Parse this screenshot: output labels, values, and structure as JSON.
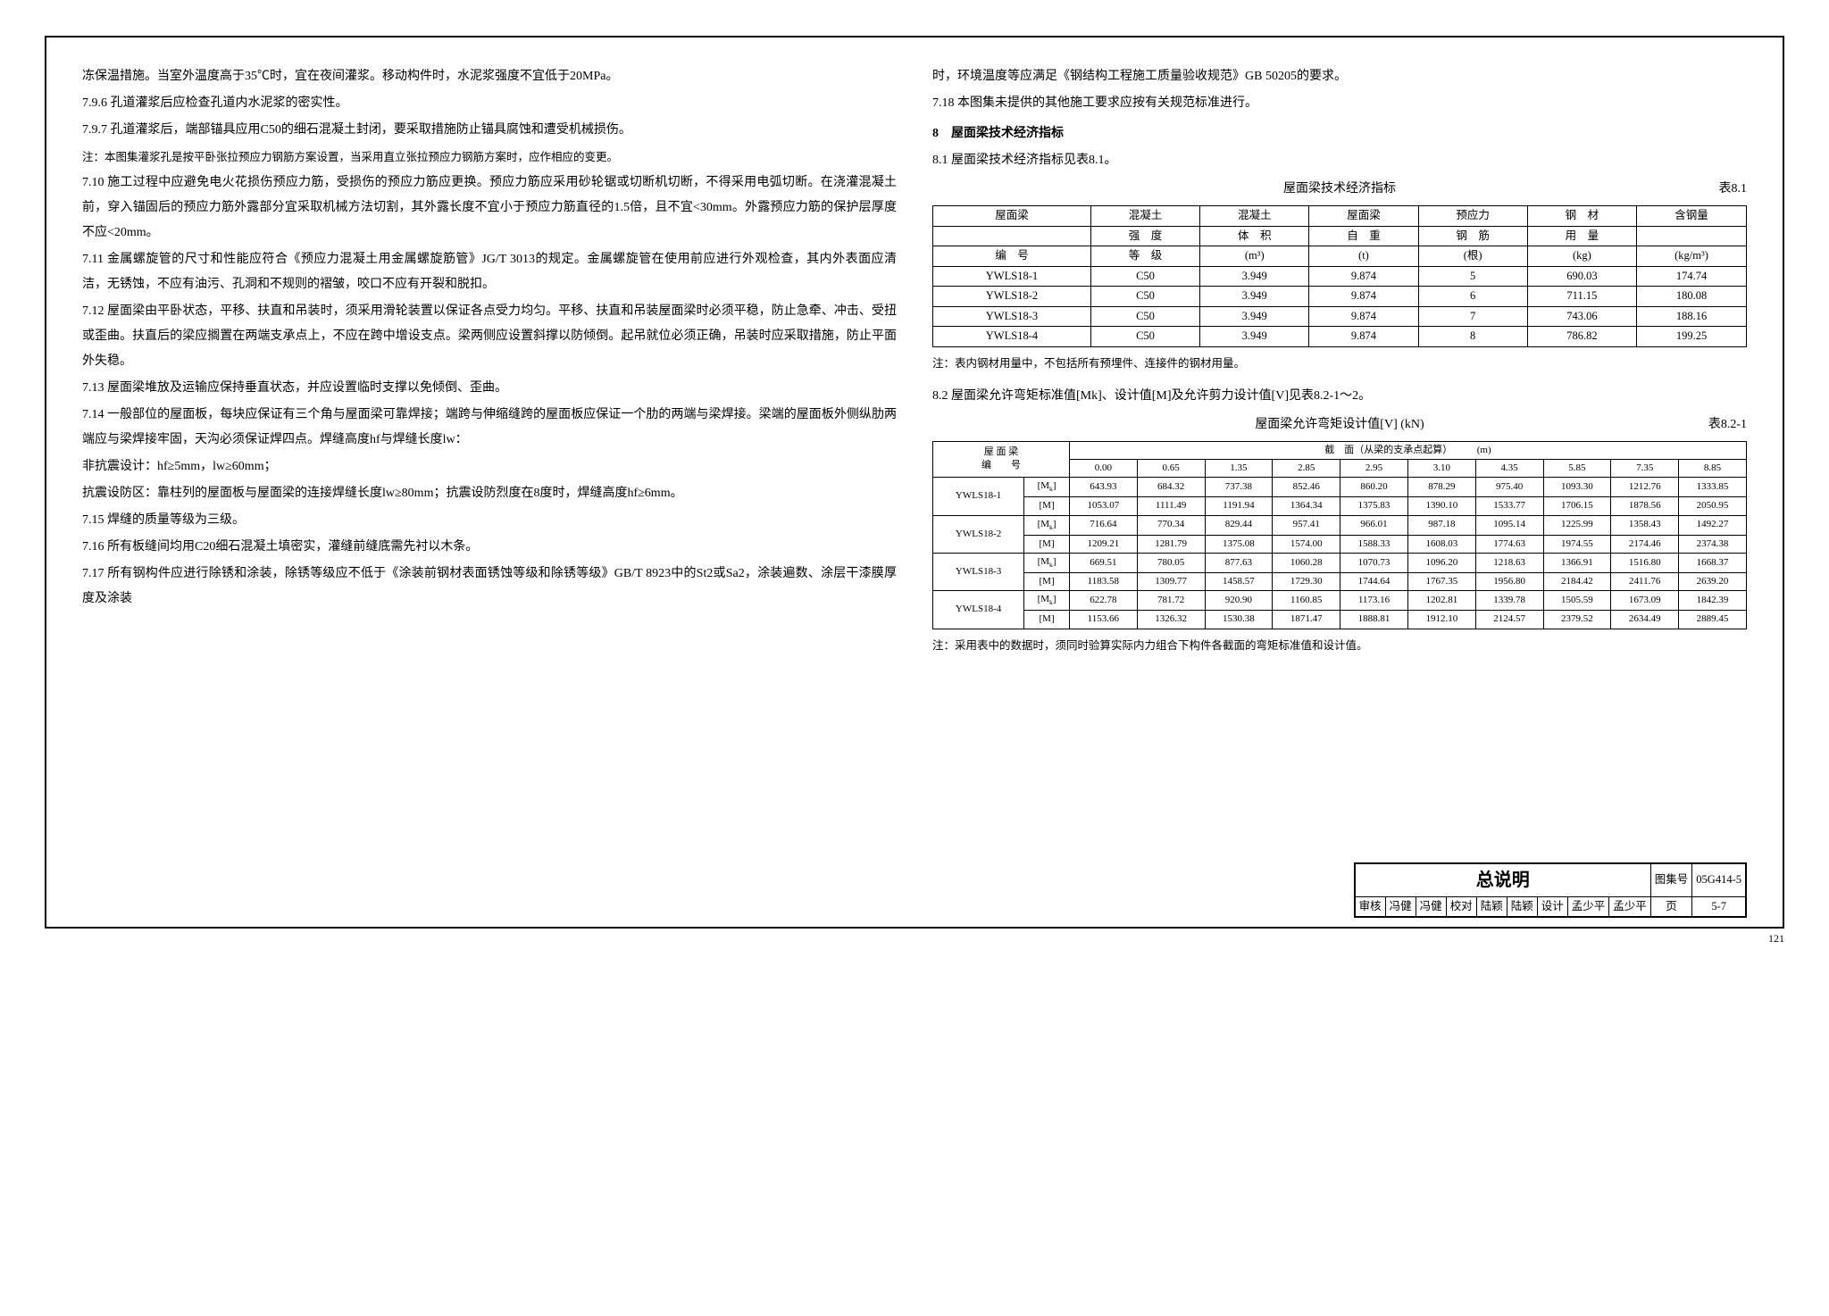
{
  "left": {
    "p1": "冻保温措施。当室外温度高于35℃时，宜在夜间灌浆。移动构件时，水泥浆强度不宜低于20MPa。",
    "p2": "7.9.6 孔道灌浆后应检查孔道内水泥浆的密实性。",
    "p3": "7.9.7 孔道灌浆后，端部锚具应用C50的细石混凝土封闭，要采取措施防止锚具腐蚀和遭受机械损伤。",
    "note1": "注：本图集灌浆孔是按平卧张拉预应力钢筋方案设置，当采用直立张拉预应力钢筋方案时，应作相应的变更。",
    "p4": "7.10 施工过程中应避免电火花损伤预应力筋，受损伤的预应力筋应更换。预应力筋应采用砂轮锯或切断机切断，不得采用电弧切断。在浇灌混凝土前，穿入锚固后的预应力筋外露部分宜采取机械方法切割，其外露长度不宜小于预应力筋直径的1.5倍，且不宜<30mm。外露预应力筋的保护层厚度不应<20mm。",
    "p5": "7.11 金属螺旋管的尺寸和性能应符合《预应力混凝土用金属螺旋筋管》JG/T 3013的规定。金属螺旋管在使用前应进行外观检查，其内外表面应清洁，无锈蚀，不应有油污、孔洞和不规则的褶皱，咬口不应有开裂和脱扣。",
    "p6": "7.12 屋面梁由平卧状态，平移、扶直和吊装时，须采用滑轮装置以保证各点受力均匀。平移、扶直和吊装屋面梁时必须平稳，防止急牵、冲击、受扭或歪曲。扶直后的梁应搁置在两端支承点上，不应在跨中增设支点。梁两侧应设置斜撑以防倾倒。起吊就位必须正确，吊装时应采取措施，防止平面外失稳。",
    "p7": "7.13 屋面梁堆放及运输应保持垂直状态，并应设置临时支撑以免倾倒、歪曲。",
    "p8": "7.14 一般部位的屋面板，每块应保证有三个角与屋面梁可靠焊接；端跨与伸缩缝跨的屋面板应保证一个肋的两端与梁焊接。梁端的屋面板外侧纵肋两端应与梁焊接牢固，天沟必须保证焊四点。焊缝高度hf与焊缝长度lw：",
    "p9": "    非抗震设计：hf≥5mm，lw≥60mm；",
    "p10": "    抗震设防区：靠柱列的屋面板与屋面梁的连接焊缝长度lw≥80mm；抗震设防烈度在8度时，焊缝高度hf≥6mm。",
    "p11": "7.15 焊缝的质量等级为三级。",
    "p12": "7.16 所有板缝间均用C20细石混凝土填密实，灌缝前缝底需先衬以木条。",
    "p13": "7.17 所有钢构件应进行除锈和涂装，除锈等级应不低于《涂装前钢材表面锈蚀等级和除锈等级》GB/T 8923中的St2或Sa2，涂装遍数、涂层干漆膜厚度及涂装"
  },
  "right": {
    "p1": "时，环境温度等应满足《钢结构工程施工质量验收规范》GB 50205的要求。",
    "p2": "7.18 本图集未提供的其他施工要求应按有关规范标准进行。",
    "s8": "8　屋面梁技术经济指标",
    "p3": "8.1 屋面梁技术经济指标见表8.1。",
    "t81_title": "屋面梁技术经济指标",
    "t81_label": "表8.1",
    "t81_headers": [
      "屋面梁",
      "混凝土",
      "混凝土",
      "屋面梁",
      "预应力",
      "钢　材",
      "含钢量"
    ],
    "t81_headers2": [
      "",
      "强　度",
      "体　积",
      "自　重",
      "钢　筋",
      "用　量",
      ""
    ],
    "t81_headers3": [
      "编　号",
      "等　级",
      "(m³)",
      "(t)",
      "(根)",
      "(kg)",
      "(kg/m³)"
    ],
    "t81_rows": [
      [
        "YWLS18-1",
        "C50",
        "3.949",
        "9.874",
        "5",
        "690.03",
        "174.74"
      ],
      [
        "YWLS18-2",
        "C50",
        "3.949",
        "9.874",
        "6",
        "711.15",
        "180.08"
      ],
      [
        "YWLS18-3",
        "C50",
        "3.949",
        "9.874",
        "7",
        "743.06",
        "188.16"
      ],
      [
        "YWLS18-4",
        "C50",
        "3.949",
        "9.874",
        "8",
        "786.82",
        "199.25"
      ]
    ],
    "t81_note": "注：表内钢材用量中，不包括所有预埋件、连接件的钢材用量。",
    "p82": "8.2 屋面梁允许弯矩标准值[Mk]、设计值[M]及允许剪力设计值[V]见表8.2-1～2。",
    "t82_title": "屋面梁允许弯矩设计值[V] (kN)",
    "t82_label": "表8.2-1",
    "t82_headspan": "截　面（从梁的支承点起算）　　　(m)",
    "t82_nums": [
      "0.00",
      "0.65",
      "1.35",
      "2.85",
      "2.95",
      "3.10",
      "4.35",
      "5.85",
      "7.35",
      "8.85"
    ],
    "t82_rows": [
      {
        "name": "YWLS18-1",
        "mk": [
          "643.93",
          "684.32",
          "737.38",
          "852.46",
          "860.20",
          "878.29",
          "975.40",
          "1093.30",
          "1212.76",
          "1333.85"
        ],
        "m": [
          "1053.07",
          "1111.49",
          "1191.94",
          "1364.34",
          "1375.83",
          "1390.10",
          "1533.77",
          "1706.15",
          "1878.56",
          "2050.95"
        ]
      },
      {
        "name": "YWLS18-2",
        "mk": [
          "716.64",
          "770.34",
          "829.44",
          "957.41",
          "966.01",
          "987.18",
          "1095.14",
          "1225.99",
          "1358.43",
          "1492.27"
        ],
        "m": [
          "1209.21",
          "1281.79",
          "1375.08",
          "1574.00",
          "1588.33",
          "1608.03",
          "1774.63",
          "1974.55",
          "2174.46",
          "2374.38"
        ]
      },
      {
        "name": "YWLS18-3",
        "mk": [
          "669.51",
          "780.05",
          "877.63",
          "1060.28",
          "1070.73",
          "1096.20",
          "1218.63",
          "1366.91",
          "1516.80",
          "1668.37"
        ],
        "m": [
          "1183.58",
          "1309.77",
          "1458.57",
          "1729.30",
          "1744.64",
          "1767.35",
          "1956.80",
          "2184.42",
          "2411.76",
          "2639.20"
        ]
      },
      {
        "name": "YWLS18-4",
        "mk": [
          "622.78",
          "781.72",
          "920.90",
          "1160.85",
          "1173.16",
          "1202.81",
          "1339.78",
          "1505.59",
          "1673.09",
          "1842.39"
        ],
        "m": [
          "1153.66",
          "1326.32",
          "1530.38",
          "1871.47",
          "1888.81",
          "1912.10",
          "2124.57",
          "2379.52",
          "2634.49",
          "2889.45"
        ]
      }
    ],
    "t82_note": "注：采用表中的数据时，须同时验算实际内力组合下构件各截面的弯矩标准值和设计值。"
  },
  "footer": {
    "title": "总说明",
    "col_label": "图集号",
    "col_val": "05G414-5",
    "row2": [
      "审核",
      "冯健",
      "冯健",
      "校对",
      "陆颖",
      "陆颖",
      "设计",
      "孟少平",
      "孟少平",
      "页",
      "5-7"
    ]
  },
  "pagenum": "121"
}
